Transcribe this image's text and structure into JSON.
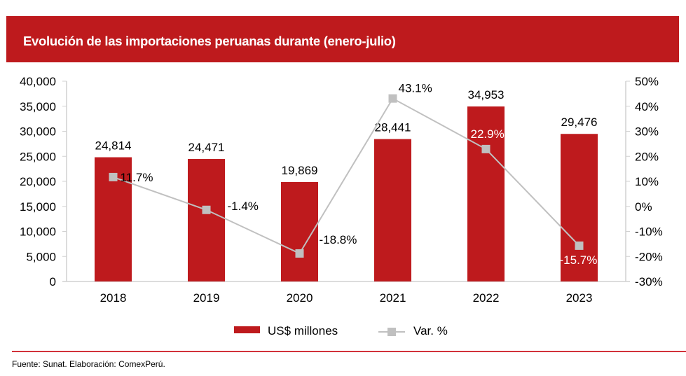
{
  "header": {
    "title": "Evolución de las importaciones peruanas durante (enero-julio)"
  },
  "chart_data": {
    "type": "bar",
    "title": "Evolución de las importaciones peruanas durante (enero-julio)",
    "categories": [
      "2018",
      "2019",
      "2020",
      "2021",
      "2022",
      "2023"
    ],
    "series": [
      {
        "name": "US$ millones",
        "kind": "bar",
        "axis": "left",
        "color": "#be1a1d",
        "values": [
          24814,
          24471,
          19869,
          28441,
          34953,
          29476
        ],
        "labels": [
          "24,814",
          "24,471",
          "19,869",
          "28,441",
          "34,953",
          "29,476"
        ]
      },
      {
        "name": "Var. %",
        "kind": "line",
        "axis": "right",
        "color": "#c0c0c0",
        "values": [
          11.7,
          -1.4,
          -18.8,
          43.1,
          22.9,
          -15.7
        ],
        "labels": [
          "11.7%",
          "-1.4%",
          "-18.8%",
          "43.1%",
          "22.9%",
          "-15.7%"
        ]
      }
    ],
    "y_left": {
      "range": [
        0,
        40000
      ],
      "ticks": [
        0,
        5000,
        10000,
        15000,
        20000,
        25000,
        30000,
        35000,
        40000
      ],
      "tick_labels": [
        "0",
        "5,000",
        "10,000",
        "15,000",
        "20,000",
        "25,000",
        "30,000",
        "35,000",
        "40,000"
      ]
    },
    "y_right": {
      "range": [
        -30,
        50
      ],
      "ticks": [
        -30,
        -20,
        -10,
        0,
        10,
        20,
        30,
        40,
        50
      ],
      "tick_labels": [
        "-30%",
        "-20%",
        "-10%",
        "0%",
        "10%",
        "20%",
        "30%",
        "40%",
        "50%"
      ]
    },
    "xlabel": "",
    "ylabel": "",
    "grid": false,
    "legend": {
      "position": "bottom",
      "entries": [
        "US$ millones",
        "Var. %"
      ]
    }
  },
  "footer": {
    "source": "Fuente: Sunat. Elaboración: ComexPerú."
  }
}
